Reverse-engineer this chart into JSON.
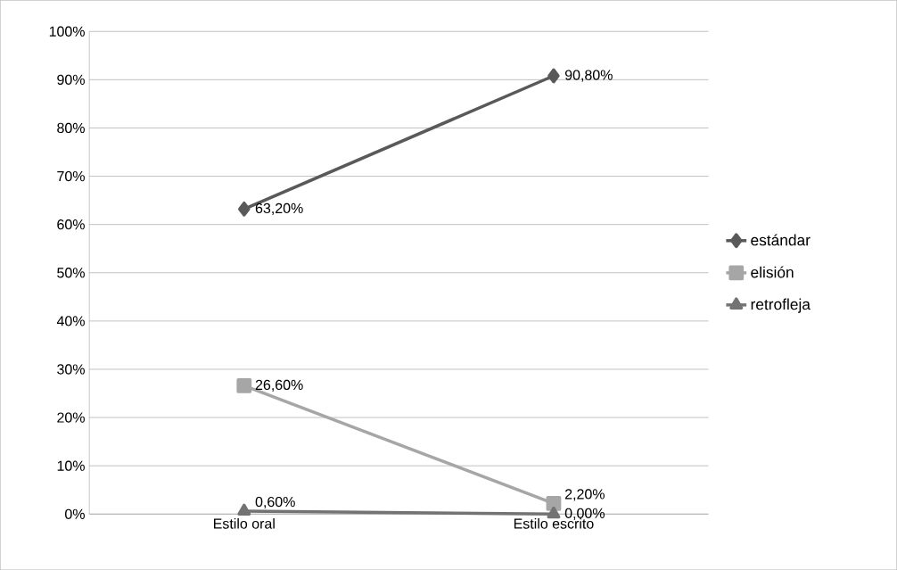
{
  "chart_data": {
    "type": "line",
    "categories": [
      "Estilo oral",
      "Estilo escrito"
    ],
    "series": [
      {
        "name": "estándar",
        "color": "#595959",
        "marker": "diamond",
        "values": [
          63.2,
          90.8
        ],
        "value_labels": [
          "63,20%",
          "90,80%"
        ]
      },
      {
        "name": "elisión",
        "color": "#a6a6a6",
        "marker": "square",
        "values": [
          26.6,
          2.2
        ],
        "value_labels": [
          "26,60%",
          "2,20%"
        ]
      },
      {
        "name": "retrofleja",
        "color": "#737373",
        "marker": "triangle",
        "values": [
          0.6,
          0.0
        ],
        "value_labels": [
          "0,60%",
          "0,00%"
        ]
      }
    ],
    "ylim": [
      0,
      100
    ],
    "yticks": [
      {
        "value": 0,
        "label": "0%"
      },
      {
        "value": 10,
        "label": "10%"
      },
      {
        "value": 20,
        "label": "20%"
      },
      {
        "value": 30,
        "label": "30%"
      },
      {
        "value": 40,
        "label": "40%"
      },
      {
        "value": 50,
        "label": "50%"
      },
      {
        "value": 60,
        "label": "60%"
      },
      {
        "value": 70,
        "label": "70%"
      },
      {
        "value": 80,
        "label": "80%"
      },
      {
        "value": 90,
        "label": "90%"
      },
      {
        "value": 100,
        "label": "100%"
      }
    ],
    "grid": "y",
    "legend": "right",
    "line_style": "solid"
  }
}
